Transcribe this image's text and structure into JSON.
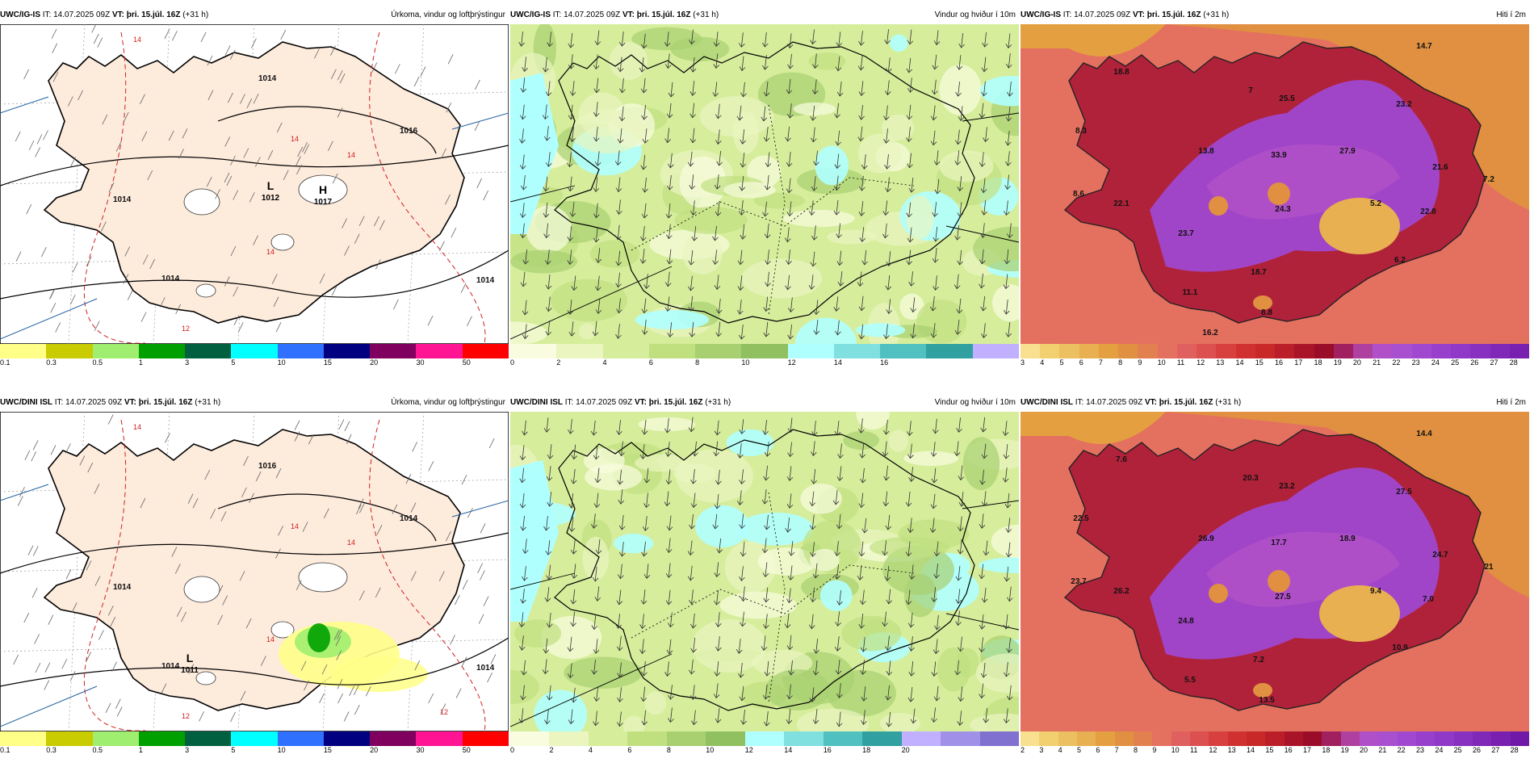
{
  "rows": [
    {
      "model": "UWC/IG-IS",
      "panels": [
        {
          "type": "precip",
          "init": "IT: 14.07.2025 09Z",
          "vt": "VT: þri. 15.júl. 16Z",
          "lead": "(+31 h)",
          "title": "Úrkoma, vindur og loftþrýstingur",
          "pressure_centers": [
            {
              "symbol": "L",
              "value": "1012"
            },
            {
              "symbol": "H",
              "value": "1017"
            }
          ],
          "isobar_labels": [
            "1014",
            "1016",
            "1014",
            "1014",
            "1014"
          ],
          "temp_labels": [
            "14",
            "14",
            "14",
            "14",
            "12"
          ],
          "cbar_ticks": [
            "0.1",
            "0.3",
            "0.5",
            "1",
            "3",
            "5",
            "10",
            "15",
            "20",
            "30",
            "50"
          ],
          "cbar_colors": [
            "#ffff88",
            "#c8cc00",
            "#a0ee70",
            "#00a000",
            "#006040",
            "#00ffff",
            "#3070ff",
            "#000080",
            "#800060",
            "#ff1493",
            "#ff0000"
          ]
        },
        {
          "type": "wind",
          "init": "IT: 14.07.2025 09Z",
          "vt": "VT: þri. 15.júl. 16Z",
          "lead": "(+31 h)",
          "title": "Vindur og hviður í 10m",
          "cbar_ticks": [
            "0",
            "2",
            "4",
            "6",
            "8",
            "10",
            "12",
            "14",
            "16"
          ],
          "cbar_colors": [
            "#fafce0",
            "#eaf5c0",
            "#d6ed9c",
            "#c0e080",
            "#a8d070",
            "#90c060",
            "#b0ffff",
            "#80e0e0",
            "#50c0c0",
            "#30a0a0",
            "#c0b0ff"
          ]
        },
        {
          "type": "temp",
          "init": "IT: 14.07.2025 09Z",
          "vt": "VT: þri. 15.júl. 16Z",
          "lead": "(+31 h)",
          "title": "Hiti í 2m",
          "temp_values": [
            "14.7",
            "18.8",
            "7",
            "25.5",
            "23.2",
            "8.3",
            "13.8",
            "33.9",
            "27.9",
            "21.6",
            "7.2",
            "8.6",
            "22.1",
            "24.3",
            "5.2",
            "22.8",
            "23.7",
            "6.2",
            "11.1",
            "18.7",
            "8.8",
            "16.2"
          ],
          "cbar_ticks": [
            "3",
            "4",
            "5",
            "6",
            "7",
            "8",
            "9",
            "10",
            "11",
            "12",
            "13",
            "14",
            "15",
            "16",
            "17",
            "18",
            "19",
            "20",
            "21",
            "22",
            "23",
            "24",
            "25",
            "26",
            "27",
            "28"
          ],
          "cbar_colors": [
            "#f8e090",
            "#f2d070",
            "#ecc060",
            "#e8b050",
            "#e4a040",
            "#e09040",
            "#e28050",
            "#e47060",
            "#e06060",
            "#dc5050",
            "#d84040",
            "#d03030",
            "#c82828",
            "#bb1e28",
            "#aa1428",
            "#9a0c28",
            "#a02060",
            "#b040a0",
            "#b050c8",
            "#a850d0",
            "#a048d0",
            "#9840cc",
            "#9038c8",
            "#8830c0",
            "#8028b8",
            "#7a20b0"
          ]
        }
      ]
    },
    {
      "model": "UWC/DINI ISL",
      "panels": [
        {
          "type": "precip",
          "init": "IT: 14.07.2025 09Z",
          "vt": "VT: þri. 15.júl. 16Z",
          "lead": "(+31 h)",
          "title": "Úrkoma, vindur og loftþrýstingur",
          "pressure_centers": [
            {
              "symbol": "L",
              "value": "1011"
            }
          ],
          "isobar_labels": [
            "1016",
            "1014",
            "1014",
            "1014",
            "1014"
          ],
          "temp_labels": [
            "14",
            "14",
            "14",
            "14",
            "12",
            "12"
          ],
          "cbar_ticks": [
            "0.1",
            "0.3",
            "0.5",
            "1",
            "3",
            "5",
            "10",
            "15",
            "20",
            "30",
            "50"
          ],
          "cbar_colors": [
            "#ffff88",
            "#c8cc00",
            "#a0ee70",
            "#00a000",
            "#006040",
            "#00ffff",
            "#3070ff",
            "#000080",
            "#800060",
            "#ff1493",
            "#ff0000"
          ]
        },
        {
          "type": "wind",
          "init": "IT: 14.07.2025 09Z",
          "vt": "VT: þri. 15.júl. 16Z",
          "lead": "(+31 h)",
          "title": "Vindur og hviður í 10m",
          "cbar_ticks": [
            "0",
            "2",
            "4",
            "6",
            "8",
            "10",
            "12",
            "14",
            "16",
            "18",
            "20"
          ],
          "cbar_colors": [
            "#fafce0",
            "#eaf5c0",
            "#d6ed9c",
            "#c0e080",
            "#a8d070",
            "#90c060",
            "#b0ffff",
            "#80e0e0",
            "#50c0c0",
            "#30a0a0",
            "#c0b0ff",
            "#a090e8",
            "#8070d0"
          ]
        },
        {
          "type": "temp",
          "init": "IT: 14.07.2025 09Z",
          "vt": "VT: þri. 15.júl. 16Z",
          "lead": "(+31 h)",
          "title": "Hiti í 2m",
          "temp_values": [
            "14.4",
            "7.6",
            "20.3",
            "23.2",
            "27.5",
            "22.5",
            "26.9",
            "17.7",
            "18.9",
            "24.7",
            "21",
            "23.7",
            "26.2",
            "27.5",
            "9.4",
            "7.0",
            "24.8",
            "10.9",
            "5.5",
            "7.2",
            "13.5"
          ],
          "cbar_ticks": [
            "2",
            "3",
            "4",
            "5",
            "6",
            "7",
            "8",
            "9",
            "10",
            "11",
            "12",
            "13",
            "14",
            "15",
            "16",
            "17",
            "18",
            "19",
            "20",
            "21",
            "22",
            "23",
            "24",
            "25",
            "26",
            "27",
            "28"
          ],
          "cbar_colors": [
            "#f8e090",
            "#f2d070",
            "#ecc060",
            "#e8b050",
            "#e4a040",
            "#e09040",
            "#e28050",
            "#e47060",
            "#e06060",
            "#dc5050",
            "#d84040",
            "#d03030",
            "#c82828",
            "#bb1e28",
            "#aa1428",
            "#9a0c28",
            "#a02060",
            "#b040a0",
            "#b050c8",
            "#a850d0",
            "#a048d0",
            "#9840cc",
            "#9038c8",
            "#8830c0",
            "#8028b8",
            "#7a20b0",
            "#7018a8"
          ]
        }
      ]
    }
  ]
}
